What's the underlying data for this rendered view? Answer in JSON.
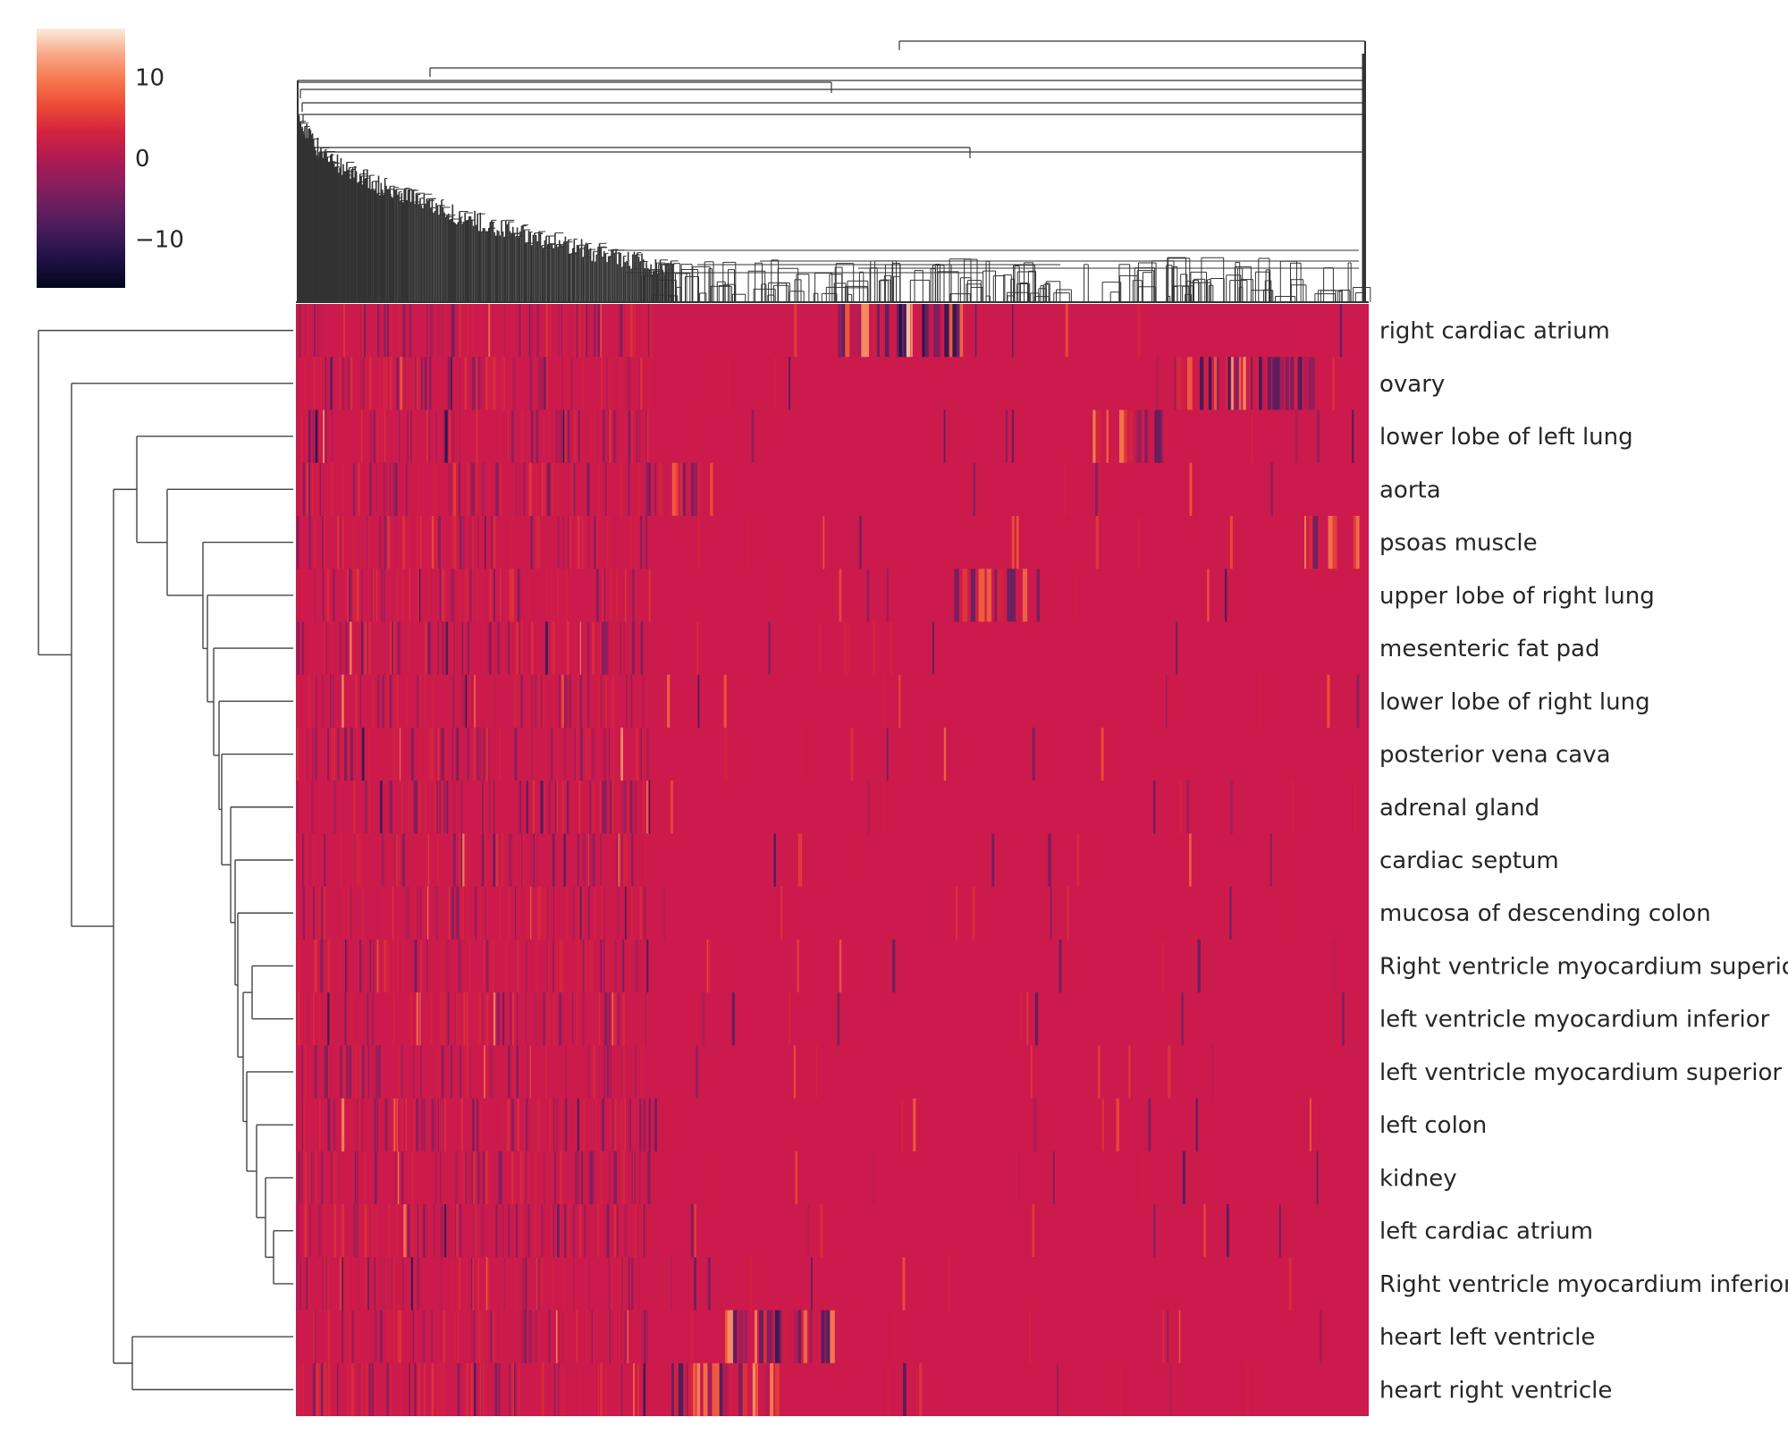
{
  "chart_data": {
    "type": "heatmap",
    "subtype": "clustermap",
    "title": "",
    "xlabel": "",
    "ylabel": "",
    "rows": [
      "right cardiac atrium",
      "ovary",
      "lower lobe of left lung",
      "aorta",
      "psoas muscle",
      "upper lobe of right lung",
      "mesenteric fat pad",
      "lower lobe of right lung",
      "posterior vena cava",
      "adrenal gland",
      "cardiac septum",
      "mucosa of descending colon",
      "Right ventricle myocardium superior",
      "left ventricle myocardium inferior",
      "left ventricle myocardium superior",
      "left colon",
      "kidney",
      "left cardiac atrium",
      "Right ventricle myocardium inferior",
      "heart left ventricle",
      "heart right ventricle"
    ],
    "column_labels_shown": false,
    "baseline_value": 0,
    "colorbar": {
      "colormap": "rocket",
      "vmin": -16,
      "vmax": 16,
      "ticks": [
        10,
        0,
        -10
      ],
      "tick_labels": [
        "10",
        "0",
        "−10"
      ]
    },
    "row_dendrogram": true,
    "column_dendrogram": true,
    "notable_features": [
      {
        "row": "right cardiac atrium",
        "x_range": [
          0.5,
          0.62
        ],
        "range": [
          -12,
          14
        ]
      },
      {
        "row": "ovary",
        "x_range": [
          0.8,
          0.95
        ],
        "range": [
          -10,
          12
        ]
      },
      {
        "row": "lower lobe of left lung",
        "x_range": [
          0.74,
          0.81
        ],
        "range": [
          -8,
          10
        ]
      },
      {
        "row": "aorta",
        "x_range": [
          0.33,
          0.38
        ],
        "range": [
          -6,
          10
        ]
      },
      {
        "row": "psoas muscle",
        "x_range": [
          0.94,
          0.99
        ],
        "range": [
          -8,
          10
        ]
      },
      {
        "row": "upper lobe of right lung",
        "x_range": [
          0.61,
          0.68
        ],
        "range": [
          -8,
          8
        ]
      },
      {
        "row": "heart left ventricle",
        "x_range": [
          0.4,
          0.5
        ],
        "range": [
          -10,
          12
        ]
      },
      {
        "row": "heart right ventricle",
        "x_range": [
          0.35,
          0.45
        ],
        "range": [
          -8,
          12
        ]
      }
    ]
  }
}
